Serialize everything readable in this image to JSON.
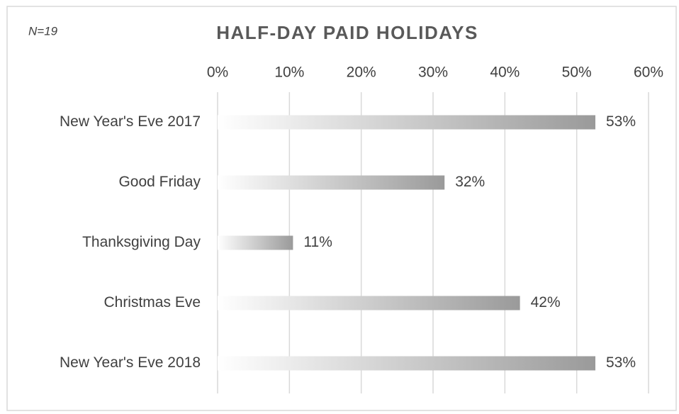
{
  "chart_data": {
    "type": "bar",
    "orientation": "horizontal",
    "title": "HALF-DAY PAID HOLIDAYS",
    "annotation": "N=19",
    "categories": [
      "New Year's Eve 2017",
      "Good Friday",
      "Thanksgiving Day",
      "Christmas Eve",
      "New Year's Eve 2018"
    ],
    "values": [
      52.6,
      31.6,
      10.5,
      42.1,
      52.6
    ],
    "value_labels": [
      "53%",
      "32%",
      "11%",
      "42%",
      "53%"
    ],
    "color": "#9a9a9a",
    "xlim": [
      0,
      60
    ],
    "xticks": [
      {
        "value": 0,
        "label": "0%"
      },
      {
        "value": 10,
        "label": "10%"
      },
      {
        "value": 20,
        "label": "20%"
      },
      {
        "value": 30,
        "label": "30%"
      },
      {
        "value": 40,
        "label": "40%"
      },
      {
        "value": 50,
        "label": "50%"
      },
      {
        "value": 60,
        "label": "60%"
      }
    ],
    "grid": true
  }
}
